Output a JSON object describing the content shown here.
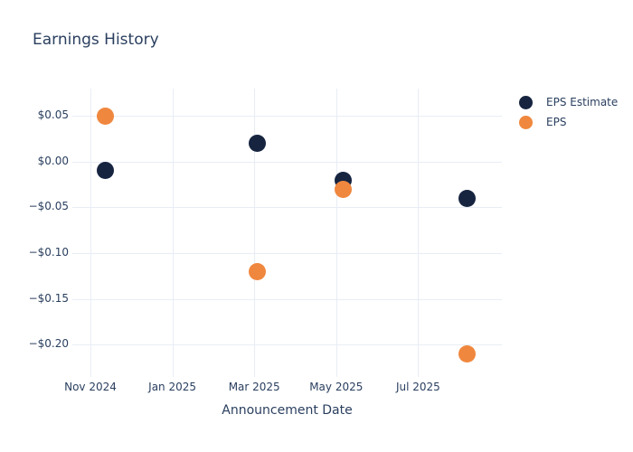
{
  "chart_data": {
    "type": "scatter",
    "title": "Earnings History",
    "xlabel": "Announcement Date",
    "ylabel": "",
    "grid": true,
    "legend_position": "right",
    "ylim": [
      -0.235,
      0.08
    ],
    "y_ticks": [
      {
        "value": 0.05,
        "label": "$0.05"
      },
      {
        "value": 0.0,
        "label": "$0.00"
      },
      {
        "value": -0.05,
        "label": "−$0.05"
      },
      {
        "value": -0.1,
        "label": "−$0.10"
      },
      {
        "value": -0.15,
        "label": "−$0.15"
      },
      {
        "value": -0.2,
        "label": "−$0.20"
      }
    ],
    "x_ticks": [
      {
        "month_offset": 0,
        "label": "Nov 2024"
      },
      {
        "month_offset": 2,
        "label": "Jan 2025"
      },
      {
        "month_offset": 4,
        "label": "Mar 2025"
      },
      {
        "month_offset": 6,
        "label": "May 2025"
      },
      {
        "month_offset": 8,
        "label": "Jul 2025"
      }
    ],
    "series": [
      {
        "name": "EPS Estimate",
        "color": "#162440",
        "points": [
          {
            "date": "2024-11-12",
            "value": -0.01
          },
          {
            "date": "2025-03-03",
            "value": 0.02
          },
          {
            "date": "2025-05-06",
            "value": -0.02
          },
          {
            "date": "2025-08-07",
            "value": -0.04
          }
        ]
      },
      {
        "name": "EPS",
        "color": "#f0873e",
        "points": [
          {
            "date": "2024-11-12",
            "value": 0.05
          },
          {
            "date": "2025-03-03",
            "value": -0.12
          },
          {
            "date": "2025-05-06",
            "value": -0.03
          },
          {
            "date": "2025-08-07",
            "value": -0.21
          }
        ]
      }
    ],
    "colors": {
      "text": "#2a3f5f",
      "grid": "#e8edf5",
      "background": "#ffffff"
    }
  }
}
